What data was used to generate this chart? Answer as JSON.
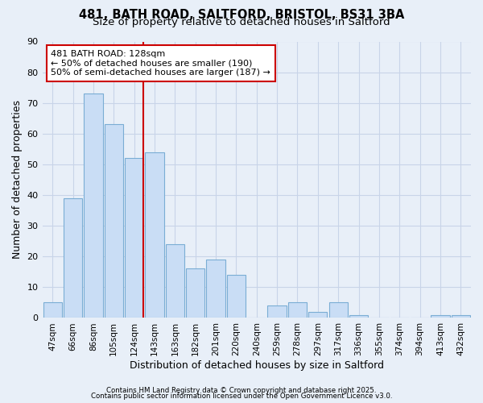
{
  "title": "481, BATH ROAD, SALTFORD, BRISTOL, BS31 3BA",
  "subtitle": "Size of property relative to detached houses in Saltford",
  "xlabel": "Distribution of detached houses by size in Saltford",
  "ylabel": "Number of detached properties",
  "categories": [
    "47sqm",
    "66sqm",
    "86sqm",
    "105sqm",
    "124sqm",
    "143sqm",
    "163sqm",
    "182sqm",
    "201sqm",
    "220sqm",
    "240sqm",
    "259sqm",
    "278sqm",
    "297sqm",
    "317sqm",
    "336sqm",
    "355sqm",
    "374sqm",
    "394sqm",
    "413sqm",
    "432sqm"
  ],
  "values": [
    5,
    39,
    73,
    63,
    52,
    54,
    24,
    16,
    19,
    14,
    0,
    4,
    5,
    2,
    5,
    1,
    0,
    0,
    0,
    1,
    1
  ],
  "bar_color": "#c9ddf5",
  "bar_edge_color": "#7aadd4",
  "vline_index": 4,
  "vline_color": "#cc0000",
  "annotation_line1": "481 BATH ROAD: 128sqm",
  "annotation_line2": "← 50% of detached houses are smaller (190)",
  "annotation_line3": "50% of semi-detached houses are larger (187) →",
  "annotation_box_color": "#ffffff",
  "annotation_box_edge": "#cc0000",
  "ylim": [
    0,
    90
  ],
  "yticks": [
    0,
    10,
    20,
    30,
    40,
    50,
    60,
    70,
    80,
    90
  ],
  "bg_color": "#e8eff8",
  "grid_color": "#c8d4e8",
  "footer1": "Contains HM Land Registry data © Crown copyright and database right 2025.",
  "footer2": "Contains public sector information licensed under the Open Government Licence v3.0.",
  "title_fontsize": 10.5,
  "subtitle_fontsize": 9.5,
  "axis_label_fontsize": 9,
  "tick_fontsize": 7.5,
  "annotation_fontsize": 8
}
